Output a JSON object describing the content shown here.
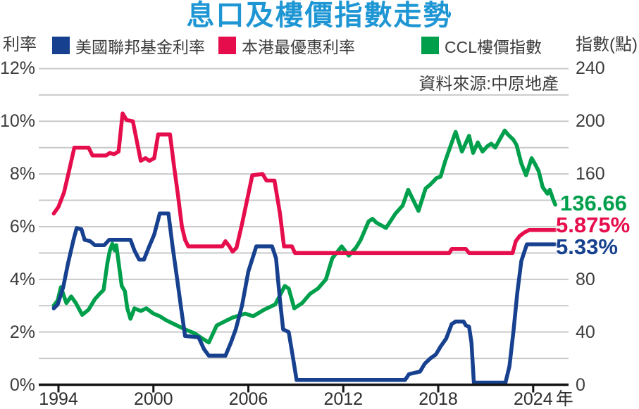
{
  "title": "息口及樓價指數走勢",
  "source": "資料來源:中原地產",
  "header": {
    "left_axis_title": "利率",
    "right_axis_title": "指數(點)"
  },
  "legend": {
    "items": [
      {
        "key": "fed",
        "label": "美國聯邦基金利率",
        "color": "#17418f"
      },
      {
        "key": "prime",
        "label": "本港最優惠利率",
        "color": "#e60d4c"
      },
      {
        "key": "ccl",
        "label": "CCL樓價指數",
        "color": "#009f4c"
      }
    ]
  },
  "end_labels": {
    "ccl": "136.66",
    "prime": "5.875%",
    "fed": "5.33%"
  },
  "colors": {
    "title": "#1e96d4",
    "fed": "#17418f",
    "prime": "#e60d4c",
    "ccl": "#009f4c",
    "grid": "#c9c9c9",
    "axis": "#141414",
    "text": "#3c3c3c"
  },
  "axes": {
    "left_ticks": [
      {
        "label": "12%",
        "value": 12
      },
      {
        "label": "10%",
        "value": 10
      },
      {
        "label": "8%",
        "value": 8
      },
      {
        "label": "6%",
        "value": 6
      },
      {
        "label": "4%",
        "value": 4
      },
      {
        "label": "2%",
        "value": 2
      },
      {
        "label": "0%",
        "value": 0
      }
    ],
    "right_ticks": [
      {
        "label": "240",
        "value": 240
      },
      {
        "label": "200",
        "value": 200
      },
      {
        "label": "160",
        "value": 160
      },
      {
        "label": "80",
        "value": 80
      },
      {
        "label": "40",
        "value": 40
      },
      {
        "label": "0",
        "value": 0
      }
    ],
    "x_ticks": [
      {
        "label": "1994",
        "year": 1994
      },
      {
        "label": "2000",
        "year": 2000
      },
      {
        "label": "2006",
        "year": 2006
      },
      {
        "label": "2012",
        "year": 2012
      },
      {
        "label": "2018",
        "year": 2018
      },
      {
        "label": "2024",
        "year": 2024
      }
    ],
    "x_suffix": "年"
  },
  "chart_data": {
    "type": "line",
    "title": "息口及樓價指數走勢",
    "x_axis": {
      "unit": "year",
      "range": [
        1993.7,
        2025.4
      ],
      "tick_years": [
        1994,
        2000,
        2006,
        2012,
        2018,
        2024
      ]
    },
    "left_axis": {
      "label": "利率",
      "unit": "%",
      "min": 0,
      "max": 12,
      "grid_step": 1,
      "label_step": 2
    },
    "right_axis": {
      "label": "指數(點)",
      "min": 0,
      "max": 240,
      "labeled_values": [
        240,
        200,
        160,
        80,
        40,
        0
      ]
    },
    "grid": true,
    "series": [
      {
        "name": "CCL樓價指數",
        "key": "ccl",
        "axis": "right",
        "color": "#009f4c",
        "end_value": 136.66,
        "points": [
          [
            1993.7,
            60
          ],
          [
            1993.95,
            64
          ],
          [
            1994.15,
            74
          ],
          [
            1994.5,
            62
          ],
          [
            1994.8,
            67
          ],
          [
            1995.1,
            62
          ],
          [
            1995.5,
            53
          ],
          [
            1995.9,
            57
          ],
          [
            1996.3,
            65
          ],
          [
            1996.6,
            69
          ],
          [
            1996.85,
            72
          ],
          [
            1997.1,
            93
          ],
          [
            1997.25,
            102
          ],
          [
            1997.4,
            107
          ],
          [
            1997.55,
            102
          ],
          [
            1997.65,
            106
          ],
          [
            1997.8,
            93
          ],
          [
            1998.0,
            75
          ],
          [
            1998.2,
            71
          ],
          [
            1998.35,
            58
          ],
          [
            1998.55,
            50
          ],
          [
            1998.8,
            58
          ],
          [
            1999.2,
            56
          ],
          [
            1999.55,
            58
          ],
          [
            2000.0,
            54
          ],
          [
            2000.4,
            52
          ],
          [
            2000.8,
            49
          ],
          [
            2001.3,
            46
          ],
          [
            2002.0,
            42
          ],
          [
            2002.6,
            39
          ],
          [
            2003.1,
            35
          ],
          [
            2003.5,
            32
          ],
          [
            2004.0,
            45
          ],
          [
            2004.5,
            48
          ],
          [
            2005.0,
            51
          ],
          [
            2005.8,
            54
          ],
          [
            2006.3,
            52
          ],
          [
            2007.0,
            57
          ],
          [
            2007.7,
            61
          ],
          [
            2008.3,
            75
          ],
          [
            2008.55,
            73
          ],
          [
            2008.9,
            58
          ],
          [
            2009.4,
            62
          ],
          [
            2009.9,
            69
          ],
          [
            2010.4,
            73
          ],
          [
            2010.9,
            80
          ],
          [
            2011.3,
            96
          ],
          [
            2011.9,
            105
          ],
          [
            2012.35,
            98
          ],
          [
            2012.8,
            104
          ],
          [
            2013.1,
            110
          ],
          [
            2013.6,
            124
          ],
          [
            2013.85,
            126
          ],
          [
            2014.1,
            123
          ],
          [
            2014.7,
            119
          ],
          [
            2015.3,
            130
          ],
          [
            2015.75,
            136
          ],
          [
            2016.1,
            148
          ],
          [
            2016.75,
            132
          ],
          [
            2017.2,
            149
          ],
          [
            2017.5,
            152
          ],
          [
            2017.9,
            157
          ],
          [
            2018.15,
            158
          ],
          [
            2018.45,
            170
          ],
          [
            2018.8,
            182
          ],
          [
            2019.1,
            192
          ],
          [
            2019.5,
            177
          ],
          [
            2019.95,
            189
          ],
          [
            2020.2,
            176
          ],
          [
            2020.5,
            184
          ],
          [
            2020.8,
            177
          ],
          [
            2021.1,
            181
          ],
          [
            2021.35,
            183
          ],
          [
            2021.6,
            180
          ],
          [
            2022.2,
            193
          ],
          [
            2022.4,
            190
          ],
          [
            2022.75,
            186
          ],
          [
            2022.95,
            182
          ],
          [
            2023.25,
            168
          ],
          [
            2023.55,
            159
          ],
          [
            2023.9,
            172
          ],
          [
            2024.1,
            168
          ],
          [
            2024.35,
            162
          ],
          [
            2024.6,
            150
          ],
          [
            2024.9,
            145
          ],
          [
            2025.05,
            148
          ],
          [
            2025.25,
            141
          ],
          [
            2025.4,
            136.66
          ]
        ]
      },
      {
        "name": "本港最優惠利率",
        "key": "prime",
        "axis": "left",
        "color": "#e60d4c",
        "end_value": 5.875,
        "points": [
          [
            1993.7,
            6.5
          ],
          [
            1994.0,
            6.75
          ],
          [
            1994.35,
            7.3
          ],
          [
            1994.7,
            8.2
          ],
          [
            1995.0,
            9.0
          ],
          [
            1995.9,
            9.0
          ],
          [
            1996.15,
            8.7
          ],
          [
            1997.0,
            8.7
          ],
          [
            1997.25,
            8.8
          ],
          [
            1997.5,
            8.75
          ],
          [
            1997.8,
            8.85
          ],
          [
            1998.05,
            10.3
          ],
          [
            1998.3,
            10.05
          ],
          [
            1998.7,
            10.0
          ],
          [
            1999.0,
            9.1
          ],
          [
            1999.2,
            8.5
          ],
          [
            1999.5,
            8.6
          ],
          [
            1999.75,
            8.5
          ],
          [
            2000.05,
            8.6
          ],
          [
            2000.3,
            9.5
          ],
          [
            2001.05,
            9.5
          ],
          [
            2001.3,
            8.3
          ],
          [
            2001.55,
            7.2
          ],
          [
            2001.8,
            6.0
          ],
          [
            2002.0,
            5.5
          ],
          [
            2002.2,
            5.25
          ],
          [
            2004.35,
            5.25
          ],
          [
            2004.55,
            5.45
          ],
          [
            2004.8,
            5.25
          ],
          [
            2005.0,
            5.05
          ],
          [
            2005.25,
            5.2
          ],
          [
            2005.6,
            6.1
          ],
          [
            2005.95,
            7.1
          ],
          [
            2006.25,
            7.95
          ],
          [
            2006.9,
            8.0
          ],
          [
            2007.15,
            7.75
          ],
          [
            2007.65,
            7.75
          ],
          [
            2008.0,
            6.5
          ],
          [
            2008.25,
            5.25
          ],
          [
            2008.75,
            5.25
          ],
          [
            2008.95,
            5.0
          ],
          [
            2018.7,
            5.0
          ],
          [
            2018.85,
            5.15
          ],
          [
            2019.75,
            5.15
          ],
          [
            2019.95,
            5.0
          ],
          [
            2022.7,
            5.0
          ],
          [
            2022.9,
            5.45
          ],
          [
            2023.15,
            5.65
          ],
          [
            2023.45,
            5.78
          ],
          [
            2023.75,
            5.875
          ],
          [
            2025.4,
            5.875
          ]
        ]
      },
      {
        "name": "美國聯邦基金利率",
        "key": "fed",
        "axis": "left",
        "color": "#17418f",
        "end_value": 5.33,
        "points": [
          [
            1993.7,
            2.9
          ],
          [
            1993.95,
            3.05
          ],
          [
            1994.3,
            3.7
          ],
          [
            1994.6,
            4.6
          ],
          [
            1994.95,
            5.5
          ],
          [
            1995.15,
            5.95
          ],
          [
            1995.45,
            5.9
          ],
          [
            1995.65,
            5.5
          ],
          [
            1996.0,
            5.45
          ],
          [
            1996.3,
            5.3
          ],
          [
            1996.9,
            5.3
          ],
          [
            1997.2,
            5.5
          ],
          [
            1998.55,
            5.5
          ],
          [
            1998.8,
            5.1
          ],
          [
            1999.1,
            4.75
          ],
          [
            1999.4,
            4.75
          ],
          [
            1999.7,
            5.2
          ],
          [
            2000.05,
            5.7
          ],
          [
            2000.4,
            6.5
          ],
          [
            2000.95,
            6.5
          ],
          [
            2001.2,
            5.3
          ],
          [
            2001.5,
            4.0
          ],
          [
            2001.75,
            2.9
          ],
          [
            2002.0,
            1.85
          ],
          [
            2002.85,
            1.8
          ],
          [
            2003.2,
            1.35
          ],
          [
            2003.5,
            1.1
          ],
          [
            2004.55,
            1.1
          ],
          [
            2004.9,
            1.6
          ],
          [
            2005.2,
            2.1
          ],
          [
            2005.6,
            3.0
          ],
          [
            2006.0,
            4.3
          ],
          [
            2006.5,
            5.25
          ],
          [
            2007.5,
            5.25
          ],
          [
            2007.75,
            4.8
          ],
          [
            2008.0,
            3.2
          ],
          [
            2008.2,
            2.1
          ],
          [
            2008.55,
            2.0
          ],
          [
            2008.8,
            1.1
          ],
          [
            2009.05,
            0.18
          ],
          [
            2015.9,
            0.18
          ],
          [
            2016.15,
            0.4
          ],
          [
            2016.85,
            0.5
          ],
          [
            2017.15,
            0.8
          ],
          [
            2017.5,
            1.0
          ],
          [
            2017.85,
            1.15
          ],
          [
            2018.15,
            1.45
          ],
          [
            2018.5,
            1.75
          ],
          [
            2018.85,
            2.3
          ],
          [
            2019.1,
            2.4
          ],
          [
            2019.6,
            2.4
          ],
          [
            2019.75,
            2.25
          ],
          [
            2019.95,
            2.2
          ],
          [
            2020.1,
            1.6
          ],
          [
            2020.25,
            0.08
          ],
          [
            2022.25,
            0.08
          ],
          [
            2022.5,
            0.7
          ],
          [
            2022.75,
            2.0
          ],
          [
            2023.0,
            3.5
          ],
          [
            2023.25,
            4.7
          ],
          [
            2023.6,
            5.33
          ],
          [
            2025.4,
            5.33
          ]
        ]
      }
    ]
  }
}
